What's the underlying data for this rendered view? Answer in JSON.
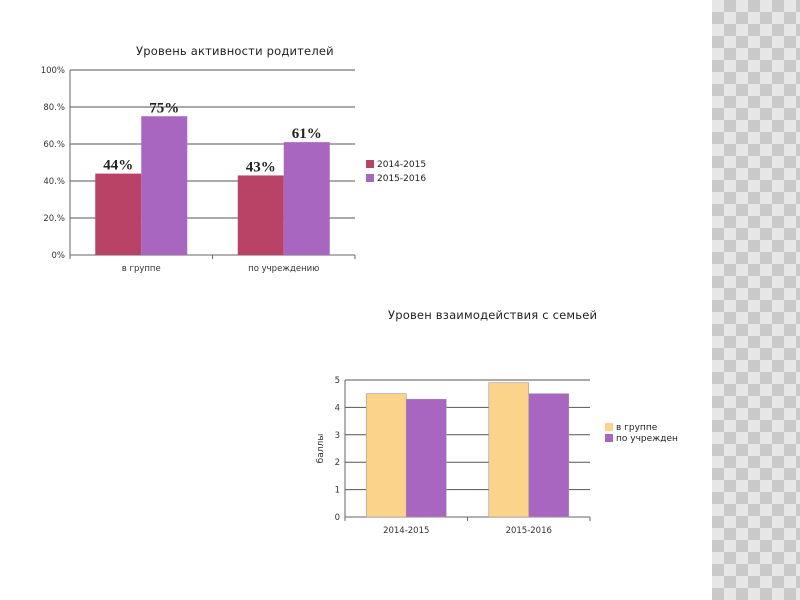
{
  "chart_data": [
    {
      "type": "bar",
      "title": "Уровень активности родителей",
      "xlabel": "",
      "ylabel": "",
      "categories": [
        "в группе",
        "по учреждению"
      ],
      "y_tick_labels": [
        "0%",
        "20.%",
        "40.%",
        "60.%",
        "80.%",
        "100%"
      ],
      "ylim": [
        0,
        100
      ],
      "grid": true,
      "legend_position": "right",
      "series": [
        {
          "name": "2014-2015",
          "color": "#b94267",
          "values": [
            44,
            43
          ],
          "labels": [
            "44%",
            "43%"
          ]
        },
        {
          "name": "2015-2016",
          "color": "#a966c0",
          "values": [
            75,
            61
          ],
          "labels": [
            "75%",
            "61%"
          ]
        }
      ]
    },
    {
      "type": "bar",
      "title": "Уровен взаимодействия с семьей",
      "xlabel": "",
      "ylabel": "баллы",
      "categories": [
        "2014-2015",
        "2015-2016"
      ],
      "y_tick_labels": [
        "0",
        "1",
        "2",
        "3",
        "4",
        "5"
      ],
      "ylim": [
        0,
        5
      ],
      "grid": true,
      "legend_position": "right",
      "series": [
        {
          "name": "в группе",
          "color": "#fbd38a",
          "values": [
            4.5,
            4.9
          ]
        },
        {
          "name": "по учрежден",
          "color": "#a966c0",
          "values": [
            4.3,
            4.5
          ]
        }
      ]
    }
  ]
}
